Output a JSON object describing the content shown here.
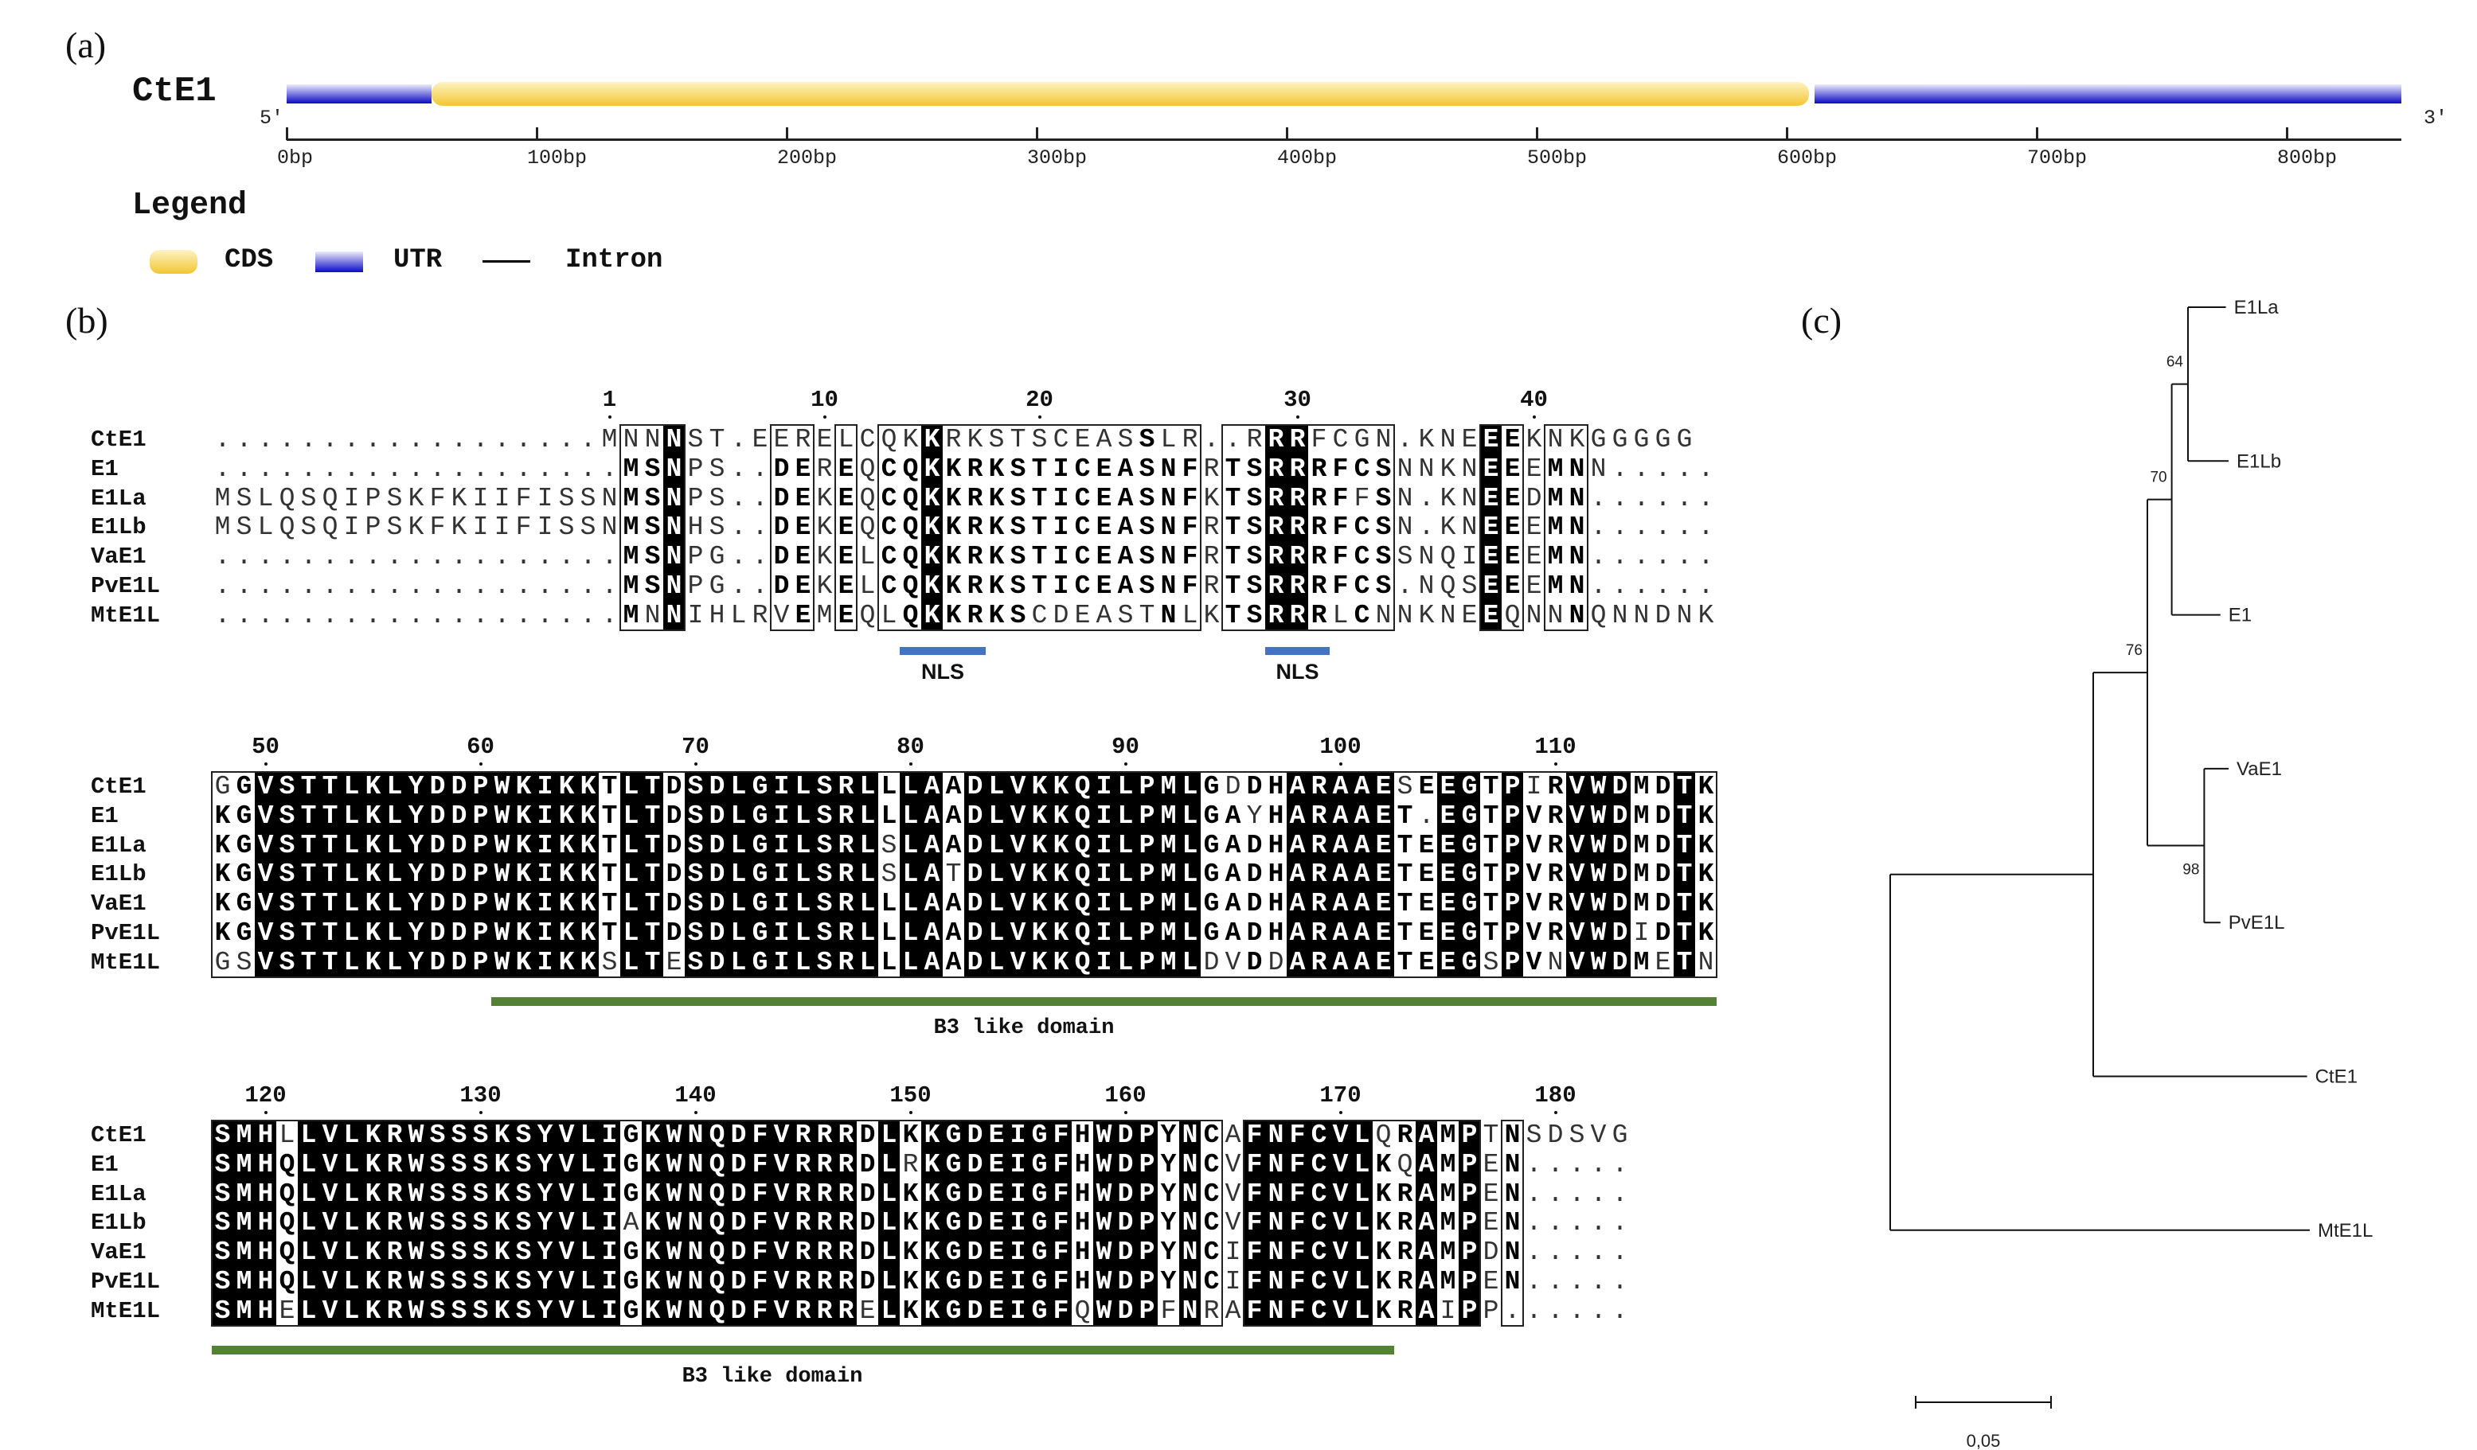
{
  "panels": {
    "a": "(a)",
    "b": "(b)",
    "c": "(c)"
  },
  "gene_structure": {
    "name": "CtE1",
    "five_prime": "5'",
    "three_prime": "3'",
    "length_bp": 846,
    "segments": [
      {
        "type": "UTR",
        "start": 0,
        "end": 58
      },
      {
        "type": "CDS",
        "start": 58,
        "end": 609
      },
      {
        "type": "UTR",
        "start": 611,
        "end": 846
      }
    ],
    "ticks": [
      {
        "value": 0,
        "label": "0bp"
      },
      {
        "value": 100,
        "label": "100bp"
      },
      {
        "value": 200,
        "label": "200bp"
      },
      {
        "value": 300,
        "label": "300bp"
      },
      {
        "value": 400,
        "label": "400bp"
      },
      {
        "value": 500,
        "label": "500bp"
      },
      {
        "value": 600,
        "label": "600bp"
      },
      {
        "value": 700,
        "label": "700bp"
      },
      {
        "value": 800,
        "label": "800bp"
      }
    ],
    "legend": {
      "title": "Legend",
      "items": [
        {
          "label": "CDS",
          "kind": "CDS"
        },
        {
          "label": "UTR",
          "kind": "UTR"
        },
        {
          "label": "Intron",
          "kind": "Intron"
        }
      ]
    },
    "colors": {
      "cds_light": "#fdf3c4",
      "cds_dark": "#f2c631",
      "utr_light": "#ececfb",
      "utr_dark": "#0a0ac4",
      "intron": "#000000"
    }
  },
  "alignment": {
    "names": [
      "CtE1",
      "E1",
      "E1La",
      "E1Lb",
      "VaE1",
      "PvE1L",
      "MtE1L"
    ],
    "colors": {
      "nls": "#4472c4",
      "domain": "#538135"
    },
    "blocks": [
      {
        "ruler": [
          "1",
          "10",
          "20",
          "30",
          "40"
        ],
        "first_residue": 1,
        "sequences": [
          "..................MNNNST.EERELCQKKRKSTSCEASSLR..RRRFCGN.KNEEEKNKGGGGG",
          "...................MSNPS..DEREQCQKKRKSTICEASNFRTSRRRFCSNNKNEEEMNN.....",
          "MSLQSQIPSKFKIIFISSNMSNPS..DEKEQCQKKRKSTICEASNFKTSRRRFFSN.KNEEDMN......",
          "MSLQSQIPSKFKIIFISSNMSNHS..DEKEQCQKKRKSTICEASNFRTSRRRFCSN.KNEEEMN......",
          "...................MSNPG..DEKELCQKKRKSTICEASNFRTSRRRFCSSNQIEEEMN......",
          "...................MSNPG..DEKELCQKKRKSTICEASNFRTSRRRFCS.NQSEEEMN......",
          "...................MNNIHLRVEMEQLQKKRKSCDEASTNLKTSRRRLCNNKNEEQNNNQNNDNK"
        ],
        "features": [
          {
            "label": "NLS",
            "type": "nls",
            "start": 14,
            "end": 17
          },
          {
            "label": "NLS",
            "type": "nls",
            "start": 29,
            "end": 31
          }
        ]
      },
      {
        "ruler": [
          "50",
          "60",
          "70",
          "80",
          "90",
          "100",
          "110"
        ],
        "first_residue": 48,
        "sequences": [
          "GGVSTTLKLYDDPWKIKKTLTDSDLGILSRLLLAADLVKKQILPMLGDDHARAAESEEGTPIRVWDMDTK",
          "KGVSTTLKLYDDPWKIKKTLTDSDLGILSRLLLAADLVKKQILPMLGAYHARAAET.EGTPVRVWDMDTK",
          "KGVSTTLKLYDDPWKIKKTLTDSDLGILSRLSLAADLVKKQILPMLGADHARAAETEEGTPVRVWDMDTK",
          "KGVSTTLKLYDDPWKIKKTLTDSDLGILSRLSLATDLVKKQILPMLGADHARAAETEEGTPVRVWDMDTK",
          "KGVSTTLKLYDDPWKIKKTLTDSDLGILSRLLLAADLVKKQILPMLGADHARAAETEEGTPVRVWDMDTK",
          "KGVSTTLKLYDDPWKIKKTLTDSDLGILSRLLLAADLVKKQILPMLGADHARAAETEEGTPVRVWDIDTK",
          "GSVSTTLKLYDDPWKIKKSLTESDLGILSRLLLAADLVKKQILPMLDVDDARAAETEEGSPVNVWDMETN"
        ],
        "features": [
          {
            "label": "B3 like domain",
            "type": "domain",
            "start": 61,
            "end": 117
          }
        ]
      },
      {
        "ruler": [
          "120",
          "130",
          "140",
          "150",
          "160",
          "170",
          "180"
        ],
        "first_residue": 118,
        "sequences": [
          "SMHLLVLKRWSSSKSYVLIGKWNQDFVRRRDLKKGDEIGFHWDPYNCAFNFCVLQRAMPTNSDSVG",
          "SMHQLVLKRWSSSKSYVLIGKWNQDFVRRRDLRKGDEIGFHWDPYNCVFNFCVLKQAMPEN.....",
          "SMHQLVLKRWSSSKSYVLIGKWNQDFVRRRDLKKGDEIGFHWDPYNCVFNFCVLKRAMPEN.....",
          "SMHQLVLKRWSSSKSYVLIAKWNQDFVRRRDLKKGDEIGFHWDPYNCVFNFCVLKRAMPEN.....",
          "SMHQLVLKRWSSSKSYVLIGKWNQDFVRRRDLKKGDEIGFHWDPYNCIFNFCVLKRAMPDN.....",
          "SMHQLVLKRWSSSKSYVLIGKWNQDFVRRRDLKKGDEIGFHWDPYNCIFNFCVLKRAMPEN.....",
          "SMHELVLKRWSSSKSYVLIGKWNQDFVRRRELKKGDEIGFQWDPFNRAFNFCVLKRAIPP......"
        ],
        "features": [
          {
            "label": "B3 like domain",
            "type": "domain",
            "start": 118,
            "end": 172
          }
        ]
      }
    ]
  },
  "tree": {
    "scale_bar": {
      "value": 0.05,
      "label": "0,05"
    },
    "root": {
      "children": [
        {
          "length": 0.075,
          "children": [
            {
              "length": 0.02,
              "bootstrap": "76",
              "children": [
                {
                  "length": 0.009,
                  "bootstrap": "70",
                  "children": [
                    {
                      "length": 0.006,
                      "bootstrap": "64",
                      "children": [
                        {
                          "name": "E1La",
                          "length": 0.014
                        },
                        {
                          "name": "E1Lb",
                          "length": 0.015
                        }
                      ]
                    },
                    {
                      "name": "E1",
                      "length": 0.018
                    }
                  ]
                },
                {
                  "length": 0.021,
                  "bootstrap": "98",
                  "children": [
                    {
                      "name": "VaE1",
                      "length": 0.009
                    },
                    {
                      "name": "PvE1L",
                      "length": 0.006
                    }
                  ]
                }
              ]
            },
            {
              "name": "CtE1",
              "length": 0.079
            }
          ]
        },
        {
          "name": "MtE1L",
          "length": 0.155
        }
      ]
    }
  }
}
